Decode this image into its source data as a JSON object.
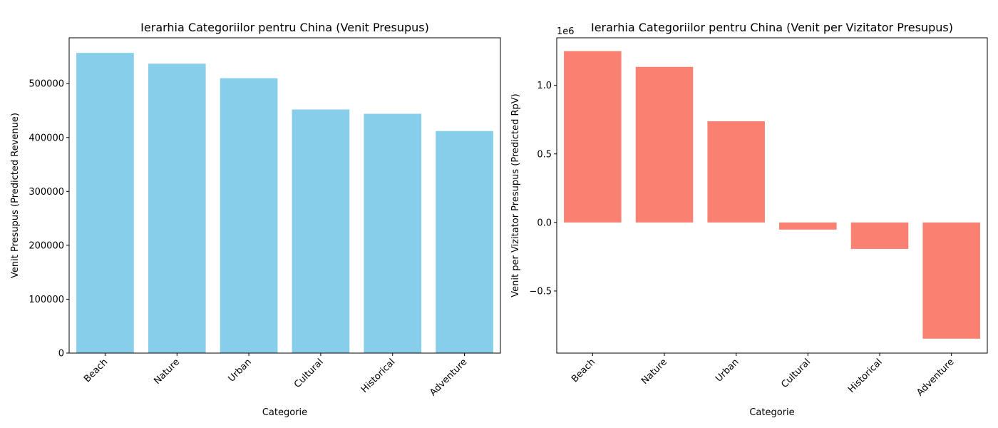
{
  "chart_data": [
    {
      "type": "bar",
      "title": "Ierarhia Categoriilor pentru China (Venit Presupus)",
      "xlabel": "Categorie",
      "ylabel": "Venit Presupus (Predicted Revenue)",
      "categories": [
        "Beach",
        "Nature",
        "Urban",
        "Cultural",
        "Historical",
        "Adventure"
      ],
      "values": [
        557000,
        537000,
        510000,
        452000,
        444000,
        412000
      ],
      "ylim": [
        0,
        585000
      ],
      "yticks": [
        0,
        100000,
        200000,
        300000,
        400000,
        500000
      ],
      "ytick_labels": [
        "0",
        "100000",
        "200000",
        "300000",
        "400000",
        "500000"
      ],
      "offset_label": "",
      "color": "#87ceeb",
      "grid": false
    },
    {
      "type": "bar",
      "title": "Ierarhia Categoriilor pentru China (Venit per Vizitator Presupus)",
      "xlabel": "Categorie",
      "ylabel": "Venit per Vizitator Presupus (Predicted RpV)",
      "categories": [
        "Beach",
        "Nature",
        "Urban",
        "Cultural",
        "Historical",
        "Adventure"
      ],
      "values": [
        1250000,
        1135000,
        738000,
        -52000,
        -193000,
        -848000
      ],
      "ylim": [
        -0.953,
        1.347
      ],
      "yticks": [
        -0.5,
        0.0,
        0.5,
        1.0
      ],
      "ytick_labels": [
        "−0.5",
        "0.0",
        "0.5",
        "1.0"
      ],
      "offset_label": "1e6",
      "scale": 1000000,
      "color": "#fa8072",
      "grid": false
    }
  ]
}
